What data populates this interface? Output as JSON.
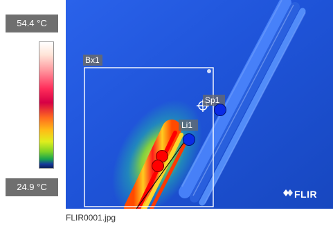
{
  "temperature_scale": {
    "max_label": "54.4 °C",
    "min_label": "24.9 °C"
  },
  "measurement_labels": {
    "box_tool": "Bx1",
    "spot_tool": "Sp1",
    "line_tool": "Li1"
  },
  "brand": {
    "logo_text": "FLIR"
  },
  "file": {
    "name": "FLIR0001.jpg"
  },
  "colors": {
    "background_blue": "#1f54d9",
    "hot_red": "#ff0000",
    "marker_blue": "#0a2be6",
    "label_gray": "#6f6f6f"
  }
}
